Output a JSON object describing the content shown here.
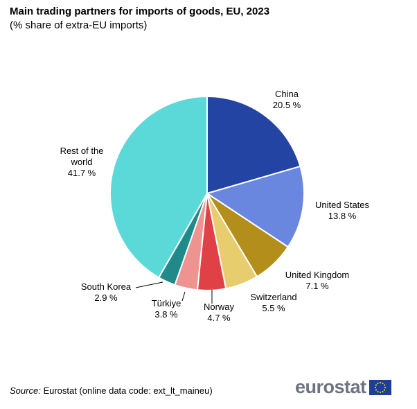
{
  "chart_data": {
    "type": "pie",
    "title": "Main trading partners for imports of goods, EU, 2023",
    "subtitle": "(% share of extra-EU imports)",
    "unit": "%",
    "slices": [
      {
        "name": "China",
        "value": 20.5,
        "value_label": "20.5 %",
        "color": "#2444a4"
      },
      {
        "name": "United States",
        "value": 13.8,
        "value_label": "13.8 %",
        "color": "#6a87e0"
      },
      {
        "name": "United Kingdom",
        "value": 7.1,
        "value_label": "7.1 %",
        "color": "#b38e1b"
      },
      {
        "name": "Switzerland",
        "value": 5.5,
        "value_label": "5.5 %",
        "color": "#e8cd6e"
      },
      {
        "name": "Norway",
        "value": 4.7,
        "value_label": "4.7 %",
        "color": "#e04146"
      },
      {
        "name": "Türkiye",
        "value": 3.8,
        "value_label": "3.8 %",
        "color": "#ef9391"
      },
      {
        "name": "South Korea",
        "value": 2.9,
        "value_label": "2.9 %",
        "color": "#208989"
      },
      {
        "name": "Rest of the world",
        "value": 41.7,
        "value_label": "41.7 %",
        "color": "#5bd8d8"
      }
    ]
  },
  "source": {
    "prefix": "Source:",
    "text": "Eurostat (online data code: ext_lt_maineu)"
  },
  "logo": {
    "text": "eurostat",
    "flag_color": "#1c3f94",
    "star_color": "#f7d117"
  }
}
